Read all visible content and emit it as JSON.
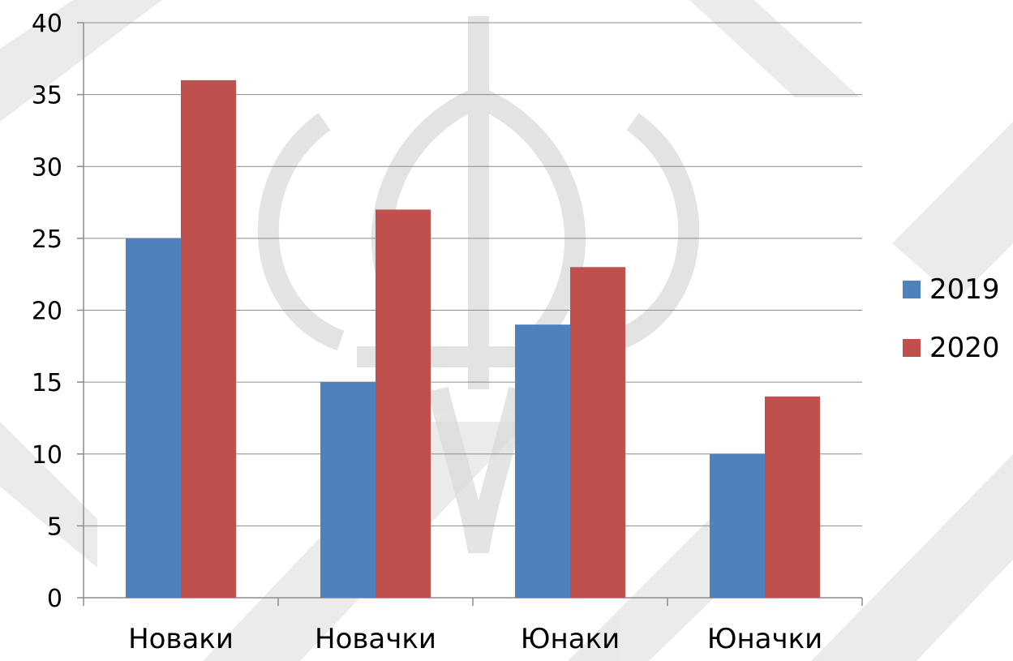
{
  "colors": {
    "series_2019": "#4F81BD",
    "series_2020": "#C0504D",
    "gridline": "#8C8C8C",
    "axis": "#8C8C8C",
    "watermark": "#D3D3D3"
  },
  "icons": {
    "background_pattern": "diagonal-chevron-watermark-icon",
    "emblem": "fleur-de-lis-trident-emblem-icon"
  },
  "chart_data": {
    "type": "bar",
    "title": "",
    "xlabel": "",
    "ylabel": "",
    "categories": [
      "Новаки",
      "Новачки",
      "Юнаки",
      "Юначки"
    ],
    "series": [
      {
        "name": "2019",
        "values": [
          25,
          15,
          19,
          10
        ]
      },
      {
        "name": "2020",
        "values": [
          36,
          27,
          23,
          14
        ]
      }
    ],
    "ylim": [
      0,
      40
    ],
    "yticks": [
      "0",
      "5",
      "10",
      "15",
      "20",
      "25",
      "30",
      "35",
      "40"
    ],
    "grid": true,
    "legend": "right"
  }
}
